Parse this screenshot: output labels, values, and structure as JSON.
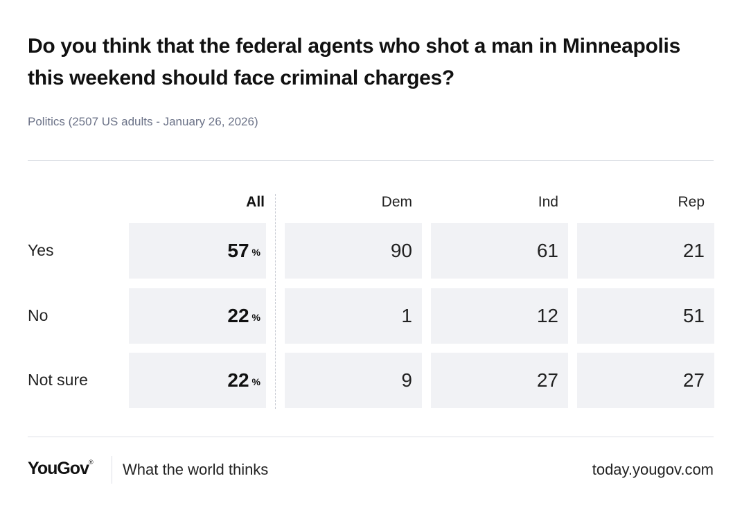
{
  "chart_data": {
    "type": "table",
    "title": "Do you think that the federal agents who shot a man in Minneapolis this weekend should face criminal charges?",
    "subtitle": "Politics (2507 US adults - January 26, 2026)",
    "columns": [
      "All",
      "Dem",
      "Ind",
      "Rep"
    ],
    "percent_suffix": "%",
    "rows": [
      {
        "label": "Yes",
        "values": [
          "57",
          "90",
          "61",
          "21"
        ]
      },
      {
        "label": "No",
        "values": [
          "22",
          "1",
          "12",
          "51"
        ]
      },
      {
        "label": "Not sure",
        "values": [
          "22",
          "9",
          "27",
          "27"
        ]
      }
    ]
  },
  "footer": {
    "brand": "YouGov",
    "brand_mark": "®",
    "tagline": "What the world thinks",
    "site": "today.yougov.com"
  }
}
